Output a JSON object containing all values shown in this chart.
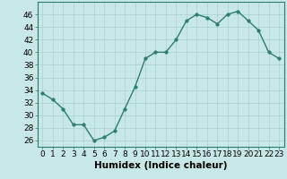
{
  "x": [
    0,
    1,
    2,
    3,
    4,
    5,
    6,
    7,
    8,
    9,
    10,
    11,
    12,
    13,
    14,
    15,
    16,
    17,
    18,
    19,
    20,
    21,
    22,
    23
  ],
  "y": [
    33.5,
    32.5,
    31,
    28.5,
    28.5,
    26,
    26.5,
    27.5,
    31,
    34.5,
    39,
    40,
    40,
    42,
    45,
    46,
    45.5,
    44.5,
    46,
    46.5,
    45,
    43.5,
    40,
    39
  ],
  "line_color": "#2e7d6e",
  "marker": "o",
  "marker_size": 2.5,
  "linewidth": 1.0,
  "bg_color": "#c8e8e8",
  "grid_color": "#aacfcf",
  "xlabel": "Humidex (Indice chaleur)",
  "xlim": [
    -0.5,
    23.5
  ],
  "ylim": [
    25,
    48
  ],
  "yticks": [
    26,
    28,
    30,
    32,
    34,
    36,
    38,
    40,
    42,
    44,
    46
  ],
  "xticks": [
    0,
    1,
    2,
    3,
    4,
    5,
    6,
    7,
    8,
    9,
    10,
    11,
    12,
    13,
    14,
    15,
    16,
    17,
    18,
    19,
    20,
    21,
    22,
    23
  ],
  "tick_labelsize": 6.5,
  "xlabel_fontsize": 7.5
}
